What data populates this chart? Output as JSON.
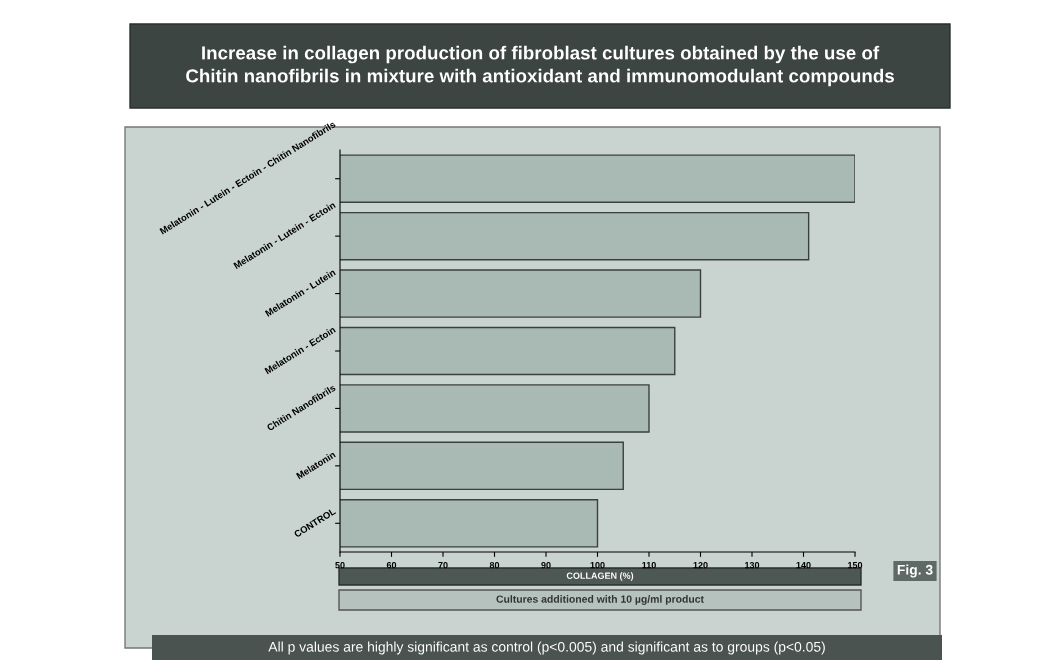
{
  "chart_data": {
    "type": "bar",
    "orientation": "horizontal",
    "title": "Increase in collagen production of fibroblast cultures obtained by the use of\nChitin nanofibrils in mixture with antioxidant and immunomodulant compounds",
    "xlabel": "COLLAGEN (%)",
    "categories": [
      "Melatonin - Lutein - Ectoin - Chitin Nanofibrils",
      "Melatonin - Lutein - Ectoin",
      "Melatonin - Lutein",
      "Melatonin - Ectoin",
      "Chitin Nanofibrils",
      "Melatonin",
      "CONTROL"
    ],
    "values": [
      150,
      141,
      120,
      115,
      110,
      105,
      100
    ],
    "color": "#a9b9b4",
    "xlim": [
      50,
      150
    ],
    "xticks": [
      50,
      60,
      70,
      80,
      90,
      100,
      110,
      120,
      130,
      140,
      150
    ],
    "grid": false,
    "annotations": [
      "Cultures additioned with 10 µg/ml product",
      "Fig. 3",
      "All p values are highly significant as control (p<0.005) and significant as to groups (p<0.05)"
    ]
  }
}
